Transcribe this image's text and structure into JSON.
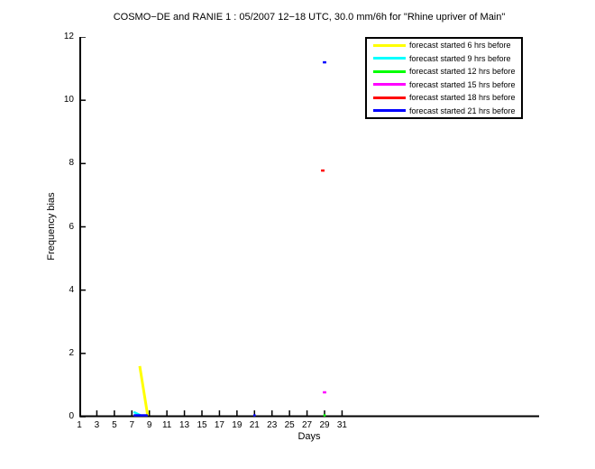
{
  "chart_data": {
    "type": "line",
    "title": "COSMO−DE and RANIE 1 : 05/2007 12−18 UTC, 30.0 mm/6h for \"Rhine upriver of Main\"",
    "xlabel": "Days",
    "ylabel": "Frequency bias",
    "xlim": [
      1,
      53.5
    ],
    "ylim": [
      0,
      12
    ],
    "x_ticks": [
      1,
      3,
      5,
      7,
      9,
      11,
      13,
      15,
      17,
      19,
      21,
      23,
      25,
      27,
      29,
      31
    ],
    "y_ticks": [
      0,
      2,
      4,
      6,
      8,
      10,
      12
    ],
    "grid": false,
    "background_color": "#ffffff",
    "axis_color": "#000000",
    "legend_position": "upper-right-inside",
    "series": [
      {
        "name": "forecast started 6 hrs before",
        "color": "#ffff00",
        "segments": [
          {
            "days": [
              7.9,
              8.8
            ],
            "values": [
              1.6,
              0.0
            ]
          }
        ]
      },
      {
        "name": "forecast started 9 hrs before",
        "color": "#00ffff",
        "segments": [
          {
            "days": [
              7.2,
              8.0
            ],
            "values": [
              0.15,
              0.02
            ]
          }
        ]
      },
      {
        "name": "forecast started 12 hrs before",
        "color": "#00ff00",
        "segments": [
          {
            "days": [
              29.0
            ],
            "values": [
              0.03
            ]
          }
        ]
      },
      {
        "name": "forecast started 15 hrs before",
        "color": "#ff00ff",
        "segments": [
          {
            "days": [
              28.8,
              29.2
            ],
            "values": [
              0.77,
              0.77
            ]
          }
        ]
      },
      {
        "name": "forecast started 18 hrs before",
        "color": "#ff0000",
        "segments": [
          {
            "days": [
              28.6,
              29.0
            ],
            "values": [
              7.78,
              7.78
            ]
          }
        ]
      },
      {
        "name": "forecast started 21 hrs before",
        "color": "#0000ff",
        "segments": [
          {
            "days": [
              7.2,
              8.8
            ],
            "values": [
              0.0,
              0.0
            ]
          },
          {
            "days": [
              21.0
            ],
            "values": [
              0.0
            ]
          },
          {
            "days": [
              28.8,
              29.2
            ],
            "values": [
              11.2,
              11.2
            ]
          }
        ]
      }
    ]
  }
}
